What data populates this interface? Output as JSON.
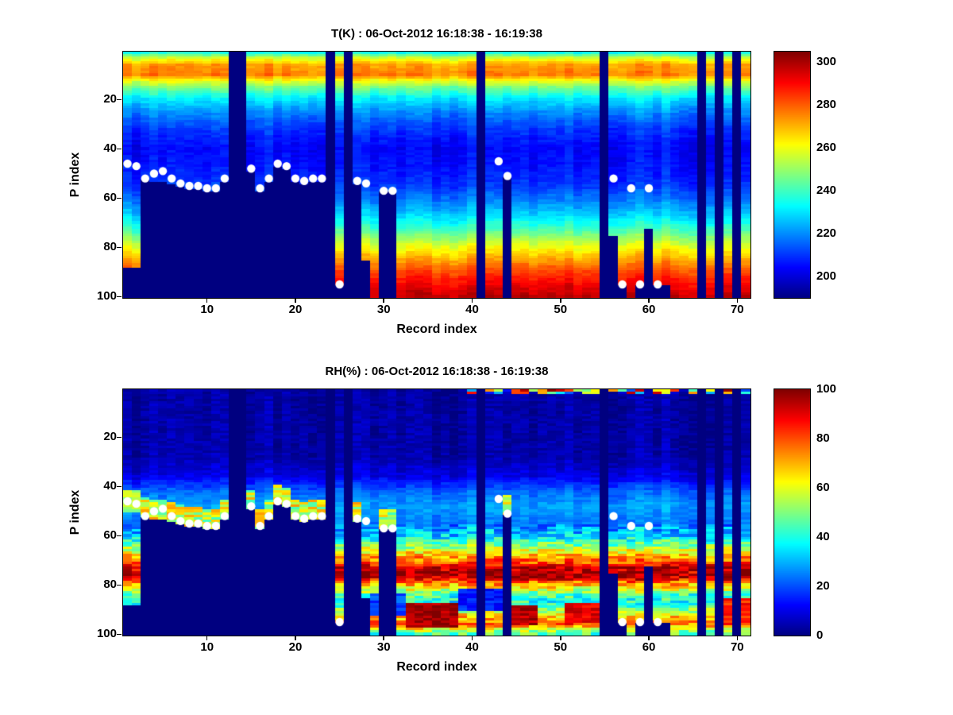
{
  "figure": {
    "background": "#ffffff",
    "text_color": "#000000",
    "masked_color_note": "jet colormap minimum (dark blue) marks missing data"
  },
  "chart_data": [
    {
      "type": "heatmap",
      "title": "T(K) : 06-Oct-2012 16:18:38 - 16:19:38",
      "xlabel": "Record index",
      "ylabel": "P index",
      "x_range": [
        1,
        71
      ],
      "y_range": [
        1,
        100
      ],
      "y_axis_direction": "reversed",
      "x_ticks": [
        10,
        20,
        30,
        40,
        50,
        60,
        70
      ],
      "y_ticks": [
        20,
        40,
        60,
        80,
        100
      ],
      "colormap": "jet",
      "clim": [
        190,
        305
      ],
      "colorbar_ticks": [
        200,
        220,
        240,
        260,
        280,
        300
      ],
      "legend_position": "right-colorbar",
      "grid": false,
      "profile_p": [
        1,
        3,
        6,
        10,
        12,
        15,
        20,
        25,
        32,
        40,
        48,
        55,
        62,
        68,
        74,
        80,
        86,
        92,
        100
      ],
      "profile_v": [
        235,
        255,
        272,
        276,
        262,
        247,
        230,
        220,
        210,
        204,
        206,
        210,
        220,
        230,
        244,
        260,
        274,
        287,
        298
      ],
      "noise_amp": 5,
      "column_noise_amp": 8,
      "clamp": false,
      "missing_records": [
        13,
        14,
        24,
        26,
        41,
        55,
        66,
        68,
        70
      ],
      "surface_levels": {
        "1": 88,
        "2": 88,
        "3": 52,
        "4": 53,
        "5": 53,
        "6": 54,
        "7": 55,
        "8": 56,
        "9": 56,
        "10": 57,
        "11": 57,
        "12": 53,
        "15": 49,
        "16": 57,
        "17": 53,
        "18": 47,
        "19": 48,
        "20": 53,
        "21": 54,
        "22": 53,
        "23": 53,
        "25": 95,
        "27": 54,
        "28": 85,
        "30": 57,
        "31": 57,
        "44": 51,
        "56": 75,
        "57": 95,
        "59": 95,
        "60": 72,
        "61": 95,
        "62": 95
      },
      "white_dots": [
        [
          1,
          46
        ],
        [
          2,
          47
        ],
        [
          3,
          52
        ],
        [
          4,
          50
        ],
        [
          5,
          49
        ],
        [
          6,
          52
        ],
        [
          7,
          54
        ],
        [
          8,
          55
        ],
        [
          9,
          55
        ],
        [
          10,
          56
        ],
        [
          11,
          56
        ],
        [
          12,
          52
        ],
        [
          15,
          48
        ],
        [
          16,
          56
        ],
        [
          17,
          52
        ],
        [
          18,
          46
        ],
        [
          19,
          47
        ],
        [
          20,
          52
        ],
        [
          21,
          53
        ],
        [
          22,
          52
        ],
        [
          23,
          52
        ],
        [
          25,
          95
        ],
        [
          27,
          53
        ],
        [
          28,
          54
        ],
        [
          30,
          57
        ],
        [
          31,
          57
        ],
        [
          43,
          45
        ],
        [
          44,
          51
        ],
        [
          56,
          52
        ],
        [
          58,
          56
        ],
        [
          60,
          56
        ],
        [
          57,
          95
        ],
        [
          59,
          95
        ],
        [
          61,
          95
        ]
      ]
    },
    {
      "type": "heatmap",
      "title": "RH(%) : 06-Oct-2012 16:18:38 - 16:19:38",
      "xlabel": "Record index",
      "ylabel": "P index",
      "x_range": [
        1,
        71
      ],
      "y_range": [
        1,
        100
      ],
      "y_axis_direction": "reversed",
      "x_ticks": [
        10,
        20,
        30,
        40,
        50,
        60,
        70
      ],
      "y_ticks": [
        20,
        40,
        60,
        80,
        100
      ],
      "colormap": "jet",
      "clim": [
        0,
        100
      ],
      "colorbar_ticks": [
        0,
        20,
        40,
        60,
        80,
        100
      ],
      "legend_position": "right-colorbar",
      "grid": false,
      "profile_p": [
        1,
        28,
        36,
        42,
        48,
        55,
        60,
        64,
        68,
        71,
        73,
        77,
        80,
        84,
        88,
        92,
        96,
        100
      ],
      "profile_v": [
        3,
        4,
        10,
        22,
        28,
        24,
        33,
        50,
        68,
        80,
        95,
        95,
        70,
        45,
        38,
        65,
        78,
        45
      ],
      "noise_amp": 22,
      "upper_noise_amp": 6,
      "column_noise_amp": 6,
      "clamp": true,
      "blobs": [
        {
          "r": [
            1,
            2
          ],
          "p": [
            42,
            50
          ],
          "v": 55
        },
        {
          "r": [
            33,
            38
          ],
          "p": [
            88,
            97
          ],
          "v": 97
        },
        {
          "r": [
            44,
            47
          ],
          "p": [
            89,
            96
          ],
          "v": 95
        },
        {
          "r": [
            51,
            54
          ],
          "p": [
            88,
            95
          ],
          "v": 90
        },
        {
          "r": [
            68,
            71
          ],
          "p": [
            86,
            95
          ],
          "v": 85
        },
        {
          "r": [
            39,
            43
          ],
          "p": [
            82,
            90
          ],
          "v": 15
        },
        {
          "r": [
            29,
            32
          ],
          "p": [
            84,
            92
          ],
          "v": 20
        }
      ],
      "surface_band": {
        "max_surface": 60,
        "depth": 8,
        "value": 58
      },
      "top_row_noise": {
        "records": [
          40,
          71
        ],
        "rows": 2
      },
      "missing_records": [
        13,
        14,
        24,
        26,
        41,
        55,
        66,
        68,
        70
      ],
      "surface_levels": {
        "1": 88,
        "2": 88,
        "3": 52,
        "4": 53,
        "5": 53,
        "6": 54,
        "7": 55,
        "8": 56,
        "9": 56,
        "10": 57,
        "11": 57,
        "12": 53,
        "15": 49,
        "16": 57,
        "17": 53,
        "18": 47,
        "19": 48,
        "20": 53,
        "21": 54,
        "22": 53,
        "23": 53,
        "25": 95,
        "27": 54,
        "28": 85,
        "30": 57,
        "31": 57,
        "44": 51,
        "56": 75,
        "57": 95,
        "59": 95,
        "60": 72,
        "61": 95,
        "62": 95
      },
      "white_dots": [
        [
          1,
          46
        ],
        [
          2,
          47
        ],
        [
          3,
          52
        ],
        [
          4,
          50
        ],
        [
          5,
          49
        ],
        [
          6,
          52
        ],
        [
          7,
          54
        ],
        [
          8,
          55
        ],
        [
          9,
          55
        ],
        [
          10,
          56
        ],
        [
          11,
          56
        ],
        [
          12,
          52
        ],
        [
          15,
          48
        ],
        [
          16,
          56
        ],
        [
          17,
          52
        ],
        [
          18,
          46
        ],
        [
          19,
          47
        ],
        [
          20,
          52
        ],
        [
          21,
          53
        ],
        [
          22,
          52
        ],
        [
          23,
          52
        ],
        [
          25,
          95
        ],
        [
          27,
          53
        ],
        [
          28,
          54
        ],
        [
          30,
          57
        ],
        [
          31,
          57
        ],
        [
          43,
          45
        ],
        [
          44,
          51
        ],
        [
          56,
          52
        ],
        [
          58,
          56
        ],
        [
          60,
          56
        ],
        [
          57,
          95
        ],
        [
          59,
          95
        ],
        [
          61,
          95
        ]
      ]
    }
  ]
}
